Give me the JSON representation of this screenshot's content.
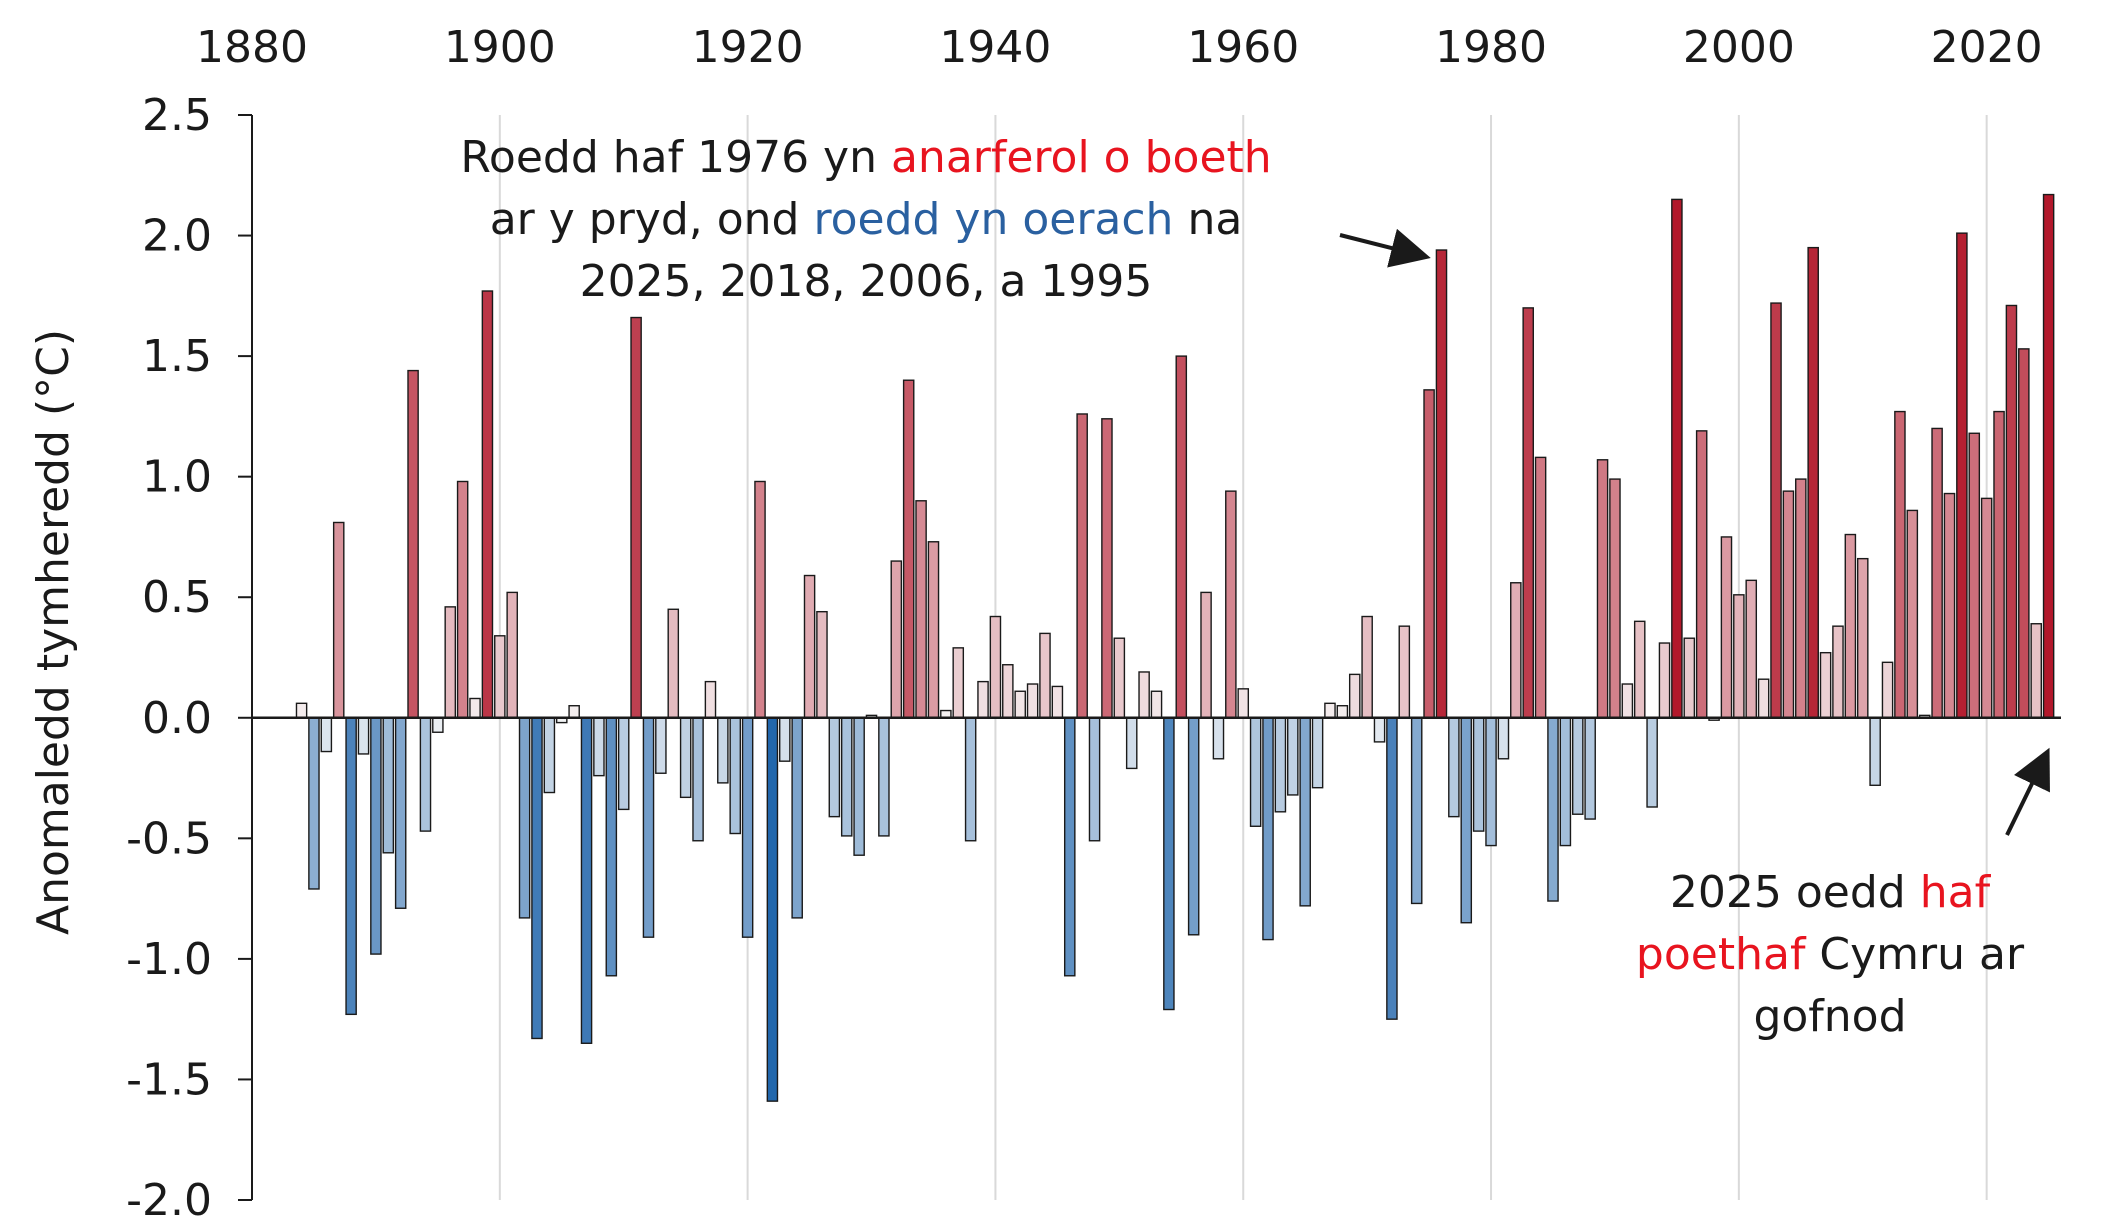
{
  "chart_data": {
    "type": "bar",
    "title": "",
    "xlabel": "",
    "ylabel": "Anomaledd tymheredd (°C)",
    "ylim": [
      -2.0,
      2.5
    ],
    "xlim": [
      1880,
      2026
    ],
    "y_ticks": [
      "2.5",
      "2.0",
      "1.5",
      "1.0",
      "0.5",
      "0.0",
      "-0.5",
      "-1.0",
      "-1.5",
      "-2.0"
    ],
    "x_ticks": [
      "1880",
      "1900",
      "1920",
      "1940",
      "1960",
      "1980",
      "2000",
      "2020"
    ],
    "x_axis_position": "top",
    "grid": "vertical",
    "legend": "none",
    "colors": {
      "warm": "#b2182b",
      "cool": "#2166ac",
      "neutral": "#f7f7f7"
    },
    "x": [
      1884,
      1885,
      1886,
      1887,
      1888,
      1889,
      1890,
      1891,
      1892,
      1893,
      1894,
      1895,
      1896,
      1897,
      1898,
      1899,
      1900,
      1901,
      1902,
      1903,
      1904,
      1905,
      1906,
      1907,
      1908,
      1909,
      1910,
      1911,
      1912,
      1913,
      1914,
      1915,
      1916,
      1917,
      1918,
      1919,
      1920,
      1921,
      1922,
      1923,
      1924,
      1925,
      1926,
      1927,
      1928,
      1929,
      1930,
      1931,
      1932,
      1933,
      1934,
      1935,
      1936,
      1937,
      1938,
      1939,
      1940,
      1941,
      1942,
      1943,
      1944,
      1945,
      1946,
      1947,
      1948,
      1949,
      1950,
      1951,
      1952,
      1953,
      1954,
      1955,
      1956,
      1957,
      1958,
      1959,
      1960,
      1961,
      1962,
      1963,
      1964,
      1965,
      1966,
      1967,
      1968,
      1969,
      1970,
      1971,
      1972,
      1973,
      1974,
      1975,
      1976,
      1977,
      1978,
      1979,
      1980,
      1981,
      1982,
      1983,
      1984,
      1985,
      1986,
      1987,
      1988,
      1989,
      1990,
      1991,
      1992,
      1993,
      1994,
      1995,
      1996,
      1997,
      1998,
      1999,
      2000,
      2001,
      2002,
      2003,
      2004,
      2005,
      2006,
      2007,
      2008,
      2009,
      2010,
      2011,
      2012,
      2013,
      2014,
      2015,
      2016,
      2017,
      2018,
      2019,
      2020,
      2021,
      2022,
      2023,
      2024,
      2025
    ],
    "values": [
      0.06,
      -0.71,
      -0.14,
      0.81,
      -1.23,
      -0.15,
      -0.98,
      -0.56,
      -0.79,
      1.44,
      -0.47,
      -0.06,
      0.46,
      0.98,
      0.08,
      1.77,
      0.34,
      0.52,
      -0.83,
      -1.33,
      -0.31,
      -0.02,
      0.05,
      -1.35,
      -0.24,
      -1.07,
      -0.38,
      1.66,
      -0.91,
      -0.23,
      0.45,
      -0.33,
      -0.51,
      0.15,
      -0.27,
      -0.48,
      -0.91,
      0.98,
      -1.59,
      -0.18,
      -0.83,
      0.59,
      0.44,
      -0.41,
      -0.49,
      -0.57,
      0.01,
      -0.49,
      0.65,
      1.4,
      0.9,
      0.73,
      0.03,
      0.29,
      -0.51,
      0.15,
      0.42,
      0.22,
      0.11,
      0.14,
      0.35,
      0.13,
      -1.07,
      1.26,
      -0.51,
      1.24,
      0.33,
      -0.21,
      0.19,
      0.11,
      -1.21,
      1.5,
      -0.9,
      0.52,
      -0.17,
      0.94,
      0.12,
      -0.45,
      -0.92,
      -0.39,
      -0.32,
      -0.78,
      -0.29,
      0.06,
      0.05,
      0.18,
      0.42,
      -0.1,
      -1.25,
      0.38,
      -0.77,
      1.36,
      1.94,
      -0.41,
      -0.85,
      -0.47,
      -0.53,
      -0.17,
      0.56,
      1.7,
      1.08,
      -0.76,
      -0.53,
      -0.4,
      -0.42,
      1.07,
      0.99,
      0.14,
      0.4,
      -0.37,
      0.31,
      2.15,
      0.33,
      1.19,
      -0.01,
      0.75,
      0.51,
      0.57,
      0.16,
      1.72,
      0.94,
      0.99,
      1.95,
      0.27,
      0.38,
      0.76,
      0.66,
      -0.28,
      0.23,
      1.27,
      0.86,
      0.01,
      1.2,
      0.93,
      2.01,
      1.18,
      0.91,
      1.27,
      1.71,
      1.53,
      0.39,
      2.17
    ],
    "annotations": [
      {
        "lines": [
          [
            {
              "text": "Roedd haf 1976 yn ",
              "color": "#1a1a1a"
            },
            {
              "text": "anarferol o boeth",
              "color": "#e8141f"
            }
          ],
          [
            {
              "text": "ar y pryd, ond ",
              "color": "#1a1a1a"
            },
            {
              "text": "roedd yn oerach",
              "color": "#2a60a0"
            },
            {
              "text": " na",
              "color": "#1a1a1a"
            }
          ],
          [
            {
              "text": "2025, 2018, 2006, a 1995",
              "color": "#1a1a1a"
            }
          ]
        ],
        "points_to": 1976
      },
      {
        "lines": [
          [
            {
              "text": "2025 oedd ",
              "color": "#1a1a1a"
            },
            {
              "text": "haf",
              "color": "#e8141f"
            }
          ],
          [
            {
              "text": "poethaf",
              "color": "#e8141f"
            },
            {
              "text": " Cymru ar",
              "color": "#1a1a1a"
            }
          ],
          [
            {
              "text": "gofnod",
              "color": "#1a1a1a"
            }
          ]
        ],
        "points_to": 2025
      }
    ]
  }
}
